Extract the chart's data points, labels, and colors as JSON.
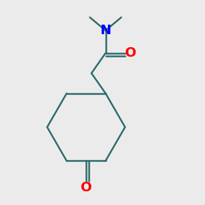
{
  "background_color": "#ebebeb",
  "bond_color": "#2d6b6b",
  "N_color": "#0000ff",
  "O_color": "#ff0000",
  "bond_width": 1.8,
  "font_size": 14,
  "fig_size": [
    3.0,
    3.0
  ],
  "dpi": 100,
  "xlim": [
    0,
    10
  ],
  "ylim": [
    0,
    10
  ]
}
